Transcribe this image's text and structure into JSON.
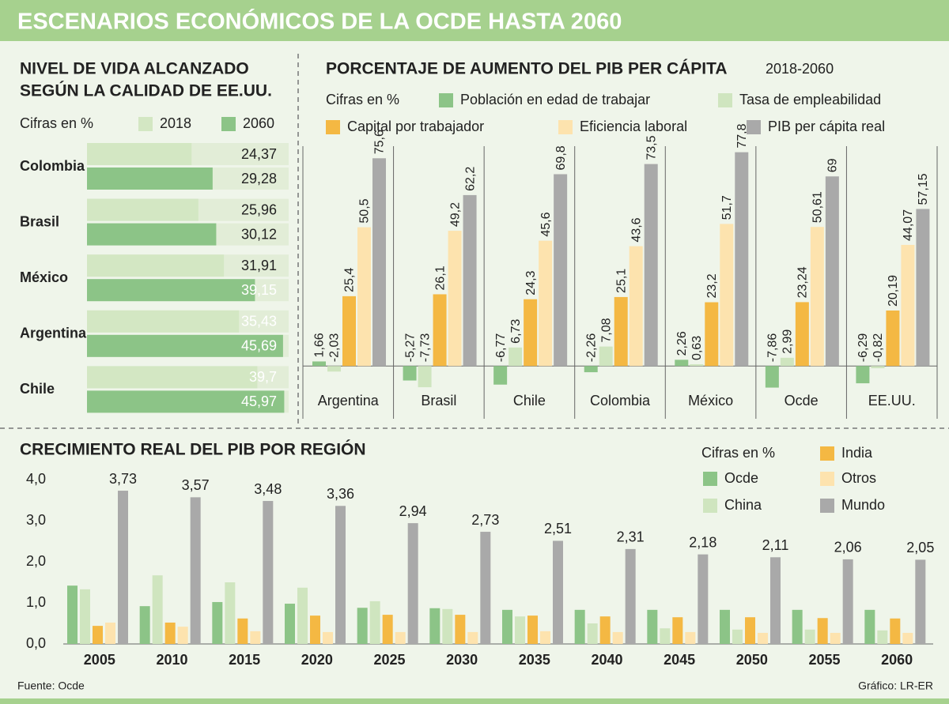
{
  "title": "ESCENARIOS ECONÓMICOS DE LA OCDE HASTA 2060",
  "source": "Fuente: Ocde",
  "credit": "Gráfico: LR-ER",
  "chart_data": [
    {
      "type": "bar",
      "orientation": "horizontal",
      "title": [
        "NIVEL DE VIDA ALCANZADO",
        "SEGÚN LA CALIDAD DE EE.UU."
      ],
      "subtitle": "Cifras en %",
      "categories": [
        "Colombia",
        "Brasil",
        "México",
        "Argentina",
        "Chile"
      ],
      "xlim": [
        0,
        47
      ],
      "series": [
        {
          "name": "2018",
          "color": "#d3e7c3",
          "values": [
            24.37,
            25.96,
            31.91,
            35.43,
            39.7
          ],
          "value_labels": [
            "24,37",
            "25,96",
            "31,91",
            "35,43",
            "39,7"
          ]
        },
        {
          "name": "2060",
          "color": "#8cc487",
          "values": [
            29.28,
            30.12,
            39.15,
            45.69,
            45.97
          ],
          "value_labels": [
            "29,28",
            "30,12",
            "39,15",
            "45,69",
            "45,97"
          ]
        }
      ]
    },
    {
      "type": "bar",
      "title": "PORCENTAJE DE AUMENTO DEL PIB PER CÁPITA",
      "subtitle": "2018-2060",
      "note": "Cifras en %",
      "categories": [
        "Argentina",
        "Brasil",
        "Chile",
        "Colombia",
        "México",
        "Ocde",
        "EE.UU."
      ],
      "ylim": [
        -10,
        80
      ],
      "series": [
        {
          "name": "Población en edad de trabajar",
          "color": "#8cc487",
          "values": [
            1.66,
            -5.27,
            -6.77,
            -2.26,
            2.26,
            -7.86,
            -6.29
          ],
          "value_labels": [
            "1,66",
            "-5,27",
            "-6,77",
            "-2,26",
            "2,26",
            "-7,86",
            "-6,29"
          ]
        },
        {
          "name": "Tasa de empleabilidad",
          "color": "#cfe5bf",
          "values": [
            -2.03,
            -7.73,
            6.73,
            7.08,
            0.63,
            2.99,
            -0.82
          ],
          "value_labels": [
            "-2,03",
            "-7,73",
            "6,73",
            "7,08",
            "0,63",
            "2,99",
            "-0,82"
          ]
        },
        {
          "name": "Capital por trabajador",
          "color": "#f4b843",
          "values": [
            25.4,
            26.1,
            24.3,
            25.1,
            23.2,
            23.24,
            20.19
          ],
          "value_labels": [
            "25,4",
            "26,1",
            "24,3",
            "25,1",
            "23,2",
            "23,24",
            "20,19"
          ]
        },
        {
          "name": "Eficiencia laboral",
          "color": "#fde3ae",
          "values": [
            50.5,
            49.2,
            45.6,
            43.6,
            51.7,
            50.61,
            44.07
          ],
          "value_labels": [
            "50,5",
            "49,2",
            "45,6",
            "43,6",
            "51,7",
            "50,61",
            "44,07"
          ]
        },
        {
          "name": "PIB per cápita real",
          "color": "#a9a9a9",
          "values": [
            75.6,
            62.2,
            69.8,
            73.5,
            77.8,
            69,
            57.15
          ],
          "value_labels": [
            "75,6",
            "62,2",
            "69,8",
            "73,5",
            "77,8",
            "69",
            "57,15"
          ]
        }
      ]
    },
    {
      "type": "bar",
      "title": "CRECIMIENTO REAL DEL PIB POR REGIÓN",
      "note": "Cifras en %",
      "categories": [
        "2005",
        "2010",
        "2015",
        "2020",
        "2025",
        "2030",
        "2035",
        "2040",
        "2045",
        "2050",
        "2055",
        "2060"
      ],
      "ylim": [
        0,
        4.1
      ],
      "yticks": [
        {
          "value": 0,
          "label": "0,0"
        },
        {
          "value": 1,
          "label": "1,0"
        },
        {
          "value": 2,
          "label": "2,0"
        },
        {
          "value": 3,
          "label": "3,0"
        },
        {
          "value": 4,
          "label": "4,0"
        }
      ],
      "series": [
        {
          "name": "Ocde",
          "color": "#8cc487",
          "values": [
            1.42,
            0.92,
            1.02,
            0.98,
            0.88,
            0.87,
            0.83,
            0.83,
            0.83,
            0.83,
            0.83,
            0.83
          ]
        },
        {
          "name": "China",
          "color": "#cfe5bf",
          "values": [
            1.33,
            1.67,
            1.5,
            1.37,
            1.04,
            0.85,
            0.67,
            0.5,
            0.38,
            0.35,
            0.35,
            0.33
          ]
        },
        {
          "name": "India",
          "color": "#f4b843",
          "values": [
            0.44,
            0.52,
            0.62,
            0.69,
            0.71,
            0.71,
            0.69,
            0.67,
            0.65,
            0.65,
            0.63,
            0.62
          ]
        },
        {
          "name": "Otros",
          "color": "#fde3ae",
          "values": [
            0.52,
            0.42,
            0.31,
            0.29,
            0.29,
            0.29,
            0.31,
            0.29,
            0.29,
            0.27,
            0.27,
            0.27
          ]
        },
        {
          "name": "Mundo",
          "color": "#a9a9a9",
          "values": [
            3.73,
            3.57,
            3.48,
            3.36,
            2.94,
            2.73,
            2.51,
            2.31,
            2.18,
            2.11,
            2.06,
            2.05
          ],
          "value_labels": [
            "3,73",
            "3,57",
            "3,48",
            "3,36",
            "2,94",
            "2,73",
            "2,51",
            "2,31",
            "2,18",
            "2,11",
            "2,06",
            "2,05"
          ]
        }
      ]
    }
  ]
}
